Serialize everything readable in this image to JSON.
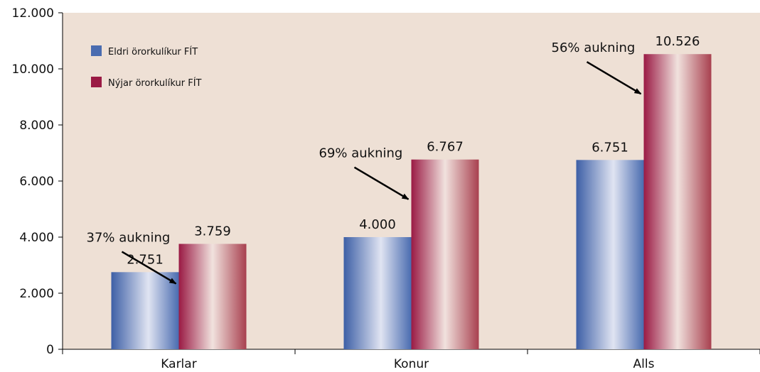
{
  "chart_data": {
    "type": "bar",
    "categories": [
      "Karlar",
      "Konur",
      "Alls"
    ],
    "series": [
      {
        "name": "Eldri örorkulíkur FÍT",
        "values": [
          2751,
          4000,
          6751
        ],
        "labels": [
          "2.751",
          "4.000",
          "6.751"
        ],
        "color": "#4a6cb0"
      },
      {
        "name": "Nýjar örorkulíkur FÍT",
        "values": [
          3759,
          6767,
          10526
        ],
        "labels": [
          "3.759",
          "6.767",
          "10.526"
        ],
        "color": "#9a1a44"
      }
    ],
    "ylim": [
      0,
      12000
    ],
    "yticks": [
      0,
      2000,
      4000,
      6000,
      8000,
      10000,
      12000
    ],
    "ytick_labels": [
      "0",
      "2.000",
      "4.000",
      "6.000",
      "8.000",
      "10.000",
      "12.000"
    ],
    "annotations": [
      {
        "category": "Karlar",
        "text": "37% aukning"
      },
      {
        "category": "Konur",
        "text": "69% aukning"
      },
      {
        "category": "Alls",
        "text": "56% aukning"
      }
    ],
    "legend_position": "top-left",
    "plot_background": "#eee0d5",
    "grid": false
  }
}
